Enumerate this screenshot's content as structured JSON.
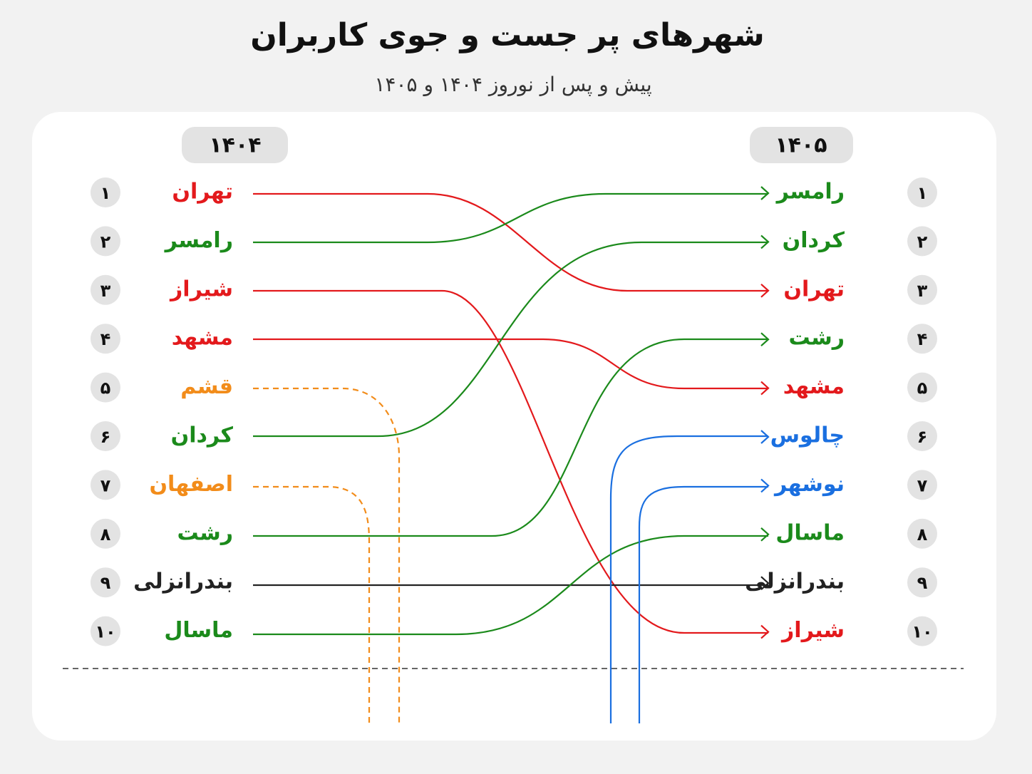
{
  "header": {
    "title": "شهرهای پر جست و جوی کاربران",
    "subtitle": "پیش و پس از نوروز ۱۴۰۴ و ۱۴۰۵"
  },
  "left": {
    "year": "۱۴۰۴",
    "rows": [
      {
        "rank": "۱",
        "city": "تهران",
        "color": "#e3191c"
      },
      {
        "rank": "۲",
        "city": "رامسر",
        "color": "#1b8a1b"
      },
      {
        "rank": "۳",
        "city": "شیراز",
        "color": "#e3191c"
      },
      {
        "rank": "۴",
        "city": "مشهد",
        "color": "#e3191c"
      },
      {
        "rank": "۵",
        "city": "قشم",
        "color": "#f28c1a"
      },
      {
        "rank": "۶",
        "city": "کردان",
        "color": "#1b8a1b"
      },
      {
        "rank": "۷",
        "city": "اصفهان",
        "color": "#f28c1a"
      },
      {
        "rank": "۸",
        "city": "رشت",
        "color": "#1b8a1b"
      },
      {
        "rank": "۹",
        "city": "بندرانزلی",
        "color": "#222222"
      },
      {
        "rank": "۱۰",
        "city": "ماسال",
        "color": "#1b8a1b"
      }
    ]
  },
  "right": {
    "year": "۱۴۰۵",
    "rows": [
      {
        "rank": "۱",
        "city": "رامسر",
        "color": "#1b8a1b"
      },
      {
        "rank": "۲",
        "city": "کردان",
        "color": "#1b8a1b"
      },
      {
        "rank": "۳",
        "city": "تهران",
        "color": "#e3191c"
      },
      {
        "rank": "۴",
        "city": "رشت",
        "color": "#1b8a1b"
      },
      {
        "rank": "۵",
        "city": "مشهد",
        "color": "#e3191c"
      },
      {
        "rank": "۶",
        "city": "چالوس",
        "color": "#1a6fe0"
      },
      {
        "rank": "۷",
        "city": "نوشهر",
        "color": "#1a6fe0"
      },
      {
        "rank": "۸",
        "city": "ماسال",
        "color": "#1b8a1b"
      },
      {
        "rank": "۹",
        "city": "بندرانزلی",
        "color": "#222222"
      },
      {
        "rank": "۱۰",
        "city": "شیراز",
        "color": "#e3191c"
      }
    ]
  }
}
